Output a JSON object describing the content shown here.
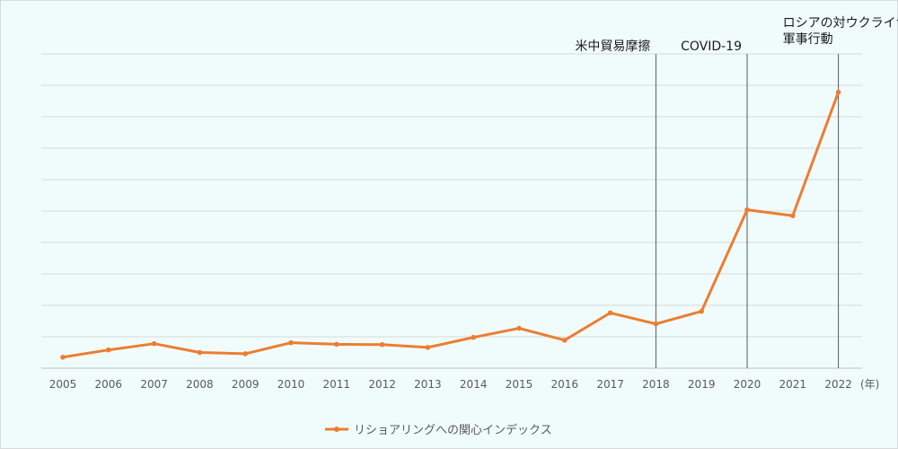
{
  "chart_data": {
    "type": "line",
    "x": [
      "2005",
      "2006",
      "2007",
      "2008",
      "2009",
      "2010",
      "2011",
      "2012",
      "2013",
      "2014",
      "2015",
      "2016",
      "2017",
      "2018",
      "2019",
      "2020",
      "2021",
      "2022"
    ],
    "series": [
      {
        "name": "リショアリングへの関心インデックス",
        "color": "#ed7d31",
        "values": [
          3.5,
          5.8,
          7.8,
          5.0,
          4.6,
          8.1,
          7.6,
          7.5,
          6.6,
          9.8,
          12.7,
          8.9,
          17.6,
          14.1,
          18.1,
          50.4,
          48.5,
          87.8
        ]
      }
    ],
    "ylim": [
      0,
      100
    ],
    "y_tick_labels": "none",
    "grid": true,
    "x_unit_label": "(年)",
    "legend_position": "bottom",
    "events": [
      {
        "x": "2018",
        "label": "米中貿易摩擦"
      },
      {
        "x": "2020",
        "label": "COVID-19"
      },
      {
        "x": "2022",
        "label_lines": [
          "ロシアの対ウクライナ",
          "軍事行動"
        ]
      }
    ]
  }
}
